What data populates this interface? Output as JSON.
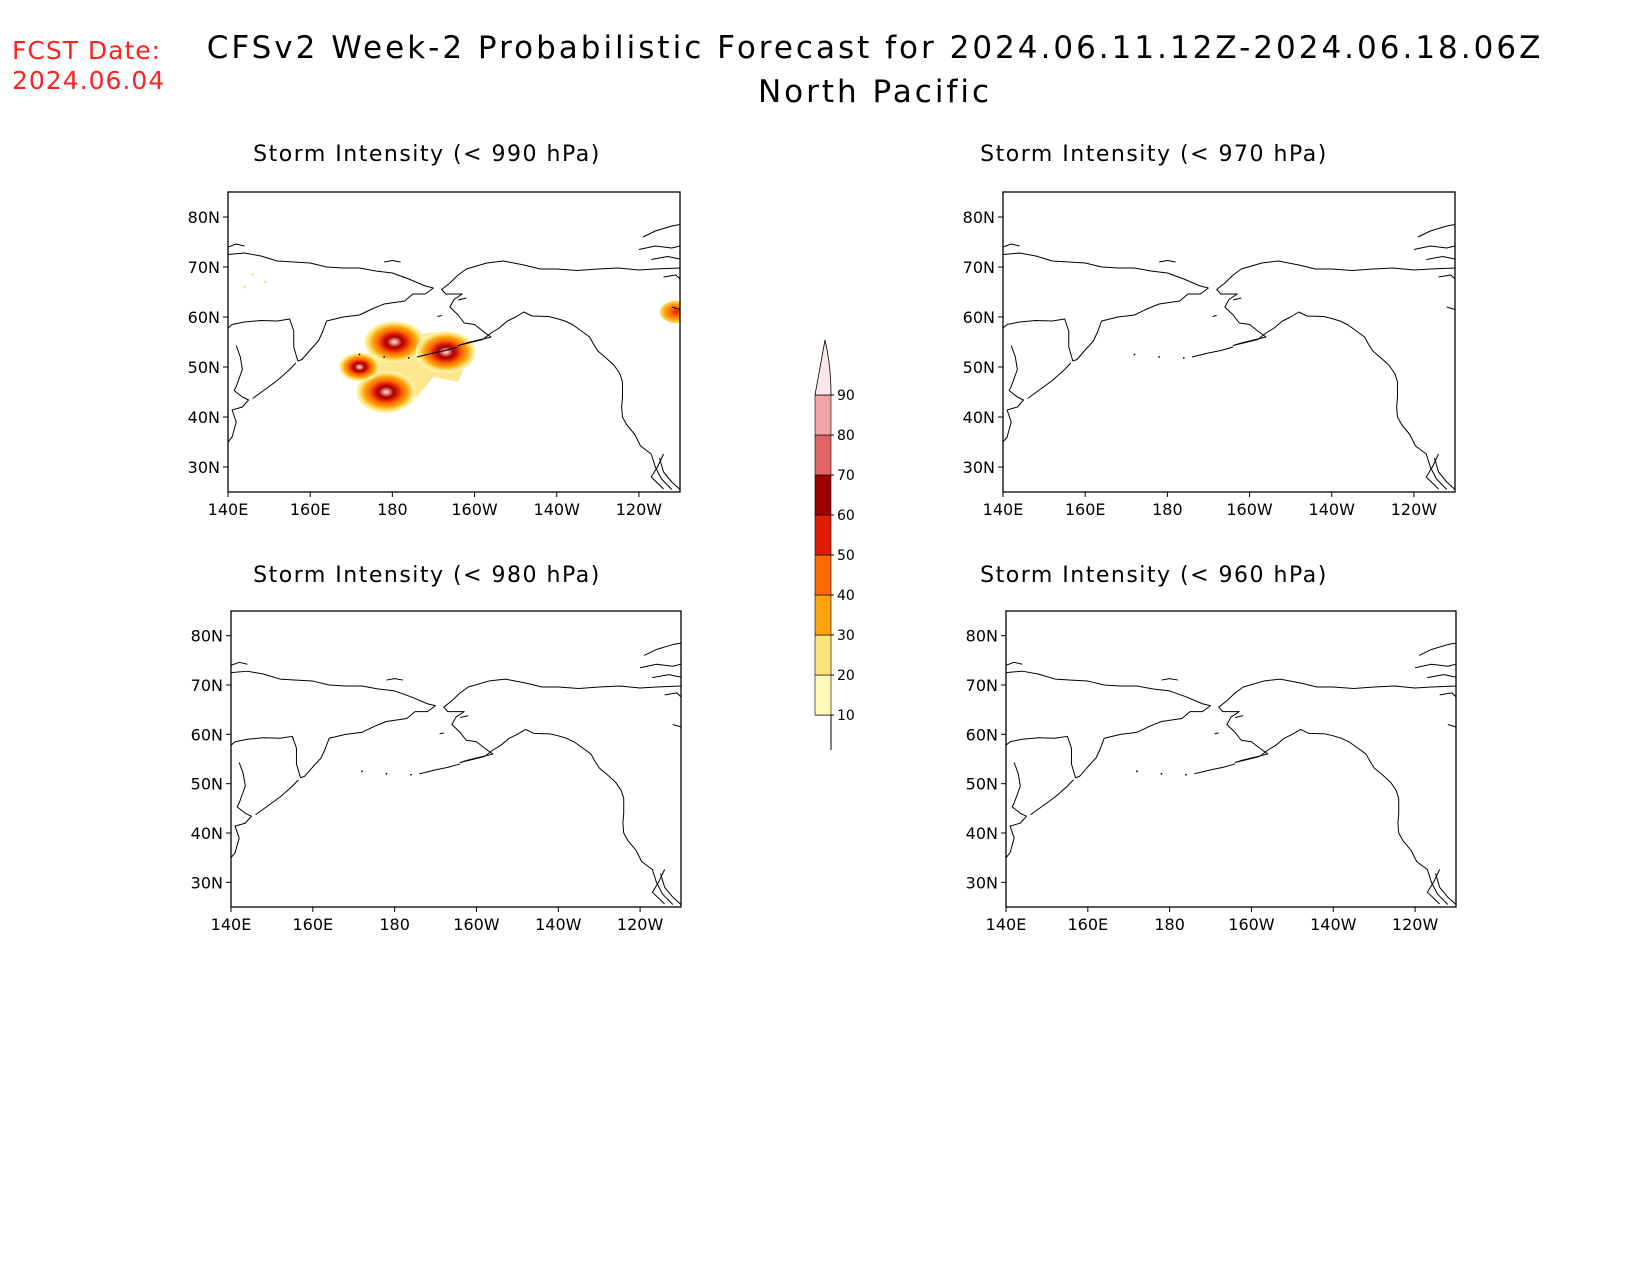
{
  "header": {
    "fcst_label": "FCST Date:",
    "fcst_date": "2024.06.04",
    "title": "CFSv2 Week-2 Probabilistic Forecast for 2024.06.11.12Z-2024.06.18.06Z",
    "subtitle": "North Pacific"
  },
  "panels": [
    {
      "title": "Storm Intensity (< 990 hPa)"
    },
    {
      "title": "Storm Intensity (< 970 hPa)"
    },
    {
      "title": "Storm Intensity (< 980 hPa)"
    },
    {
      "title": "Storm Intensity (< 960 hPa)"
    }
  ],
  "axes": {
    "lat_ticks": [
      "80N",
      "70N",
      "60N",
      "50N",
      "40N",
      "30N"
    ],
    "lat_values": [
      80,
      70,
      60,
      50,
      40,
      30
    ],
    "lon_ticks": [
      "140E",
      "160E",
      "180",
      "160W",
      "140W",
      "120W"
    ],
    "lon_values": [
      140,
      160,
      180,
      200,
      220,
      240
    ],
    "lat_range": [
      25,
      85
    ],
    "lon_range": [
      140,
      250
    ]
  },
  "colorbar": {
    "levels": [
      "10",
      "20",
      "30",
      "40",
      "50",
      "60",
      "70",
      "80",
      "90"
    ],
    "colors": [
      "#fff8b8",
      "#fde37a",
      "#fca20a",
      "#fc6a00",
      "#e11d00",
      "#a20000",
      "#df6464",
      "#f0a4a4",
      "#fde6e6"
    ]
  },
  "storm_probability_990": [
    {
      "lon": 180.5,
      "lat": 55,
      "prob": 90
    },
    {
      "lon": 193,
      "lat": 53,
      "prob": 90
    },
    {
      "lon": 178.5,
      "lat": 45,
      "prob": 80
    },
    {
      "lon": 172,
      "lat": 50,
      "prob": 70
    },
    {
      "lon": 249,
      "lat": 61,
      "prob": 40
    }
  ]
}
